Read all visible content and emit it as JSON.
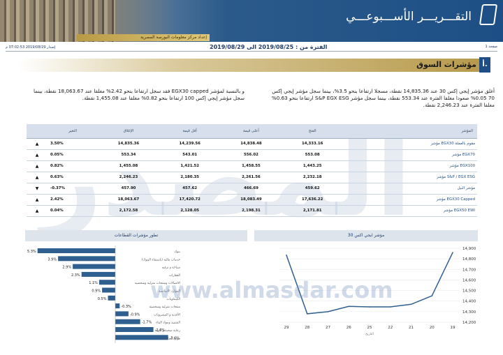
{
  "header": {
    "report_title": "التقـــريـــر الأســـبوعـــي",
    "provider": "إعداد مركز معلومات البورصة المصرية",
    "page": "صفحة 1",
    "period": "الفترة من : 2019/08/25 الى 2019/08/29",
    "issued": "إصدار 2019/08/29 07:02:53 م"
  },
  "section": {
    "number": "أ.",
    "title": "مؤشرات السوق"
  },
  "paragraphs": {
    "right": "أغلق مؤشر إيجي إكس 30 عند 14,835.36 نقطة، مسجلا ارتفاعا بنحو 3.5%، بينما سجل مؤشر إيجي إكس 70 0.05% صعودا مغلقا الفترة عند 553.34 نقطة، بينما سجل مؤشر S&P EGX ESG ارتفاعا بنحو 0.63% مغلقا الفترة عند 2,246.23 نقطة.",
    "left": "و بالنسبة لمؤشر EGX30 capped فقد سجل ارتفاعا بنحو 2.42% مغلقا عند 18,063.67 نقطة، بينما سجل مؤشر إيجي إكس 100 ارتفاعا بنحو 0.82% مغلقا عند 1,455.08 نقطة."
  },
  "table": {
    "headers": [
      "المؤشر",
      "الفتح",
      "أعلى قيمة",
      "أقل قيمة",
      "الإغلاق",
      "التغير"
    ],
    "rows": [
      {
        "name": "مؤشر EGX30 مقوم بالعملة",
        "open": "14,333.16",
        "high": "14,838.48",
        "low": "14,239.56",
        "close": "14,835.36",
        "change": "3.50%",
        "dir": "up"
      },
      {
        "name": "مؤشر EGX70",
        "open": "553.08",
        "high": "556.02",
        "low": "543.01",
        "close": "553.34",
        "change": "0.05%",
        "dir": "up"
      },
      {
        "name": "مؤشر EGX100",
        "open": "1,443.25",
        "high": "1,458.55",
        "low": "1,421.52",
        "close": "1,455.08",
        "change": "0.82%",
        "dir": "up"
      },
      {
        "name": "مؤشر S&P / EGX ESG",
        "open": "2,232.18",
        "high": "2,261.56",
        "low": "2,180.35",
        "close": "2,246.23",
        "change": "0.63%",
        "dir": "up"
      },
      {
        "name": "مؤشر النيل",
        "open": "459.62",
        "high": "466.69",
        "low": "457.62",
        "close": "457.90",
        "change": "-0.37%",
        "dir": "down"
      },
      {
        "name": "مؤشر EGX30 Capped",
        "open": "17,636.22",
        "high": "18,083.49",
        "low": "17,420.72",
        "close": "18,063.67",
        "change": "2.42%",
        "dir": "up"
      },
      {
        "name": "مؤشر EGX50 EWI",
        "open": "2,171.81",
        "high": "2,198.31",
        "low": "2,128.05",
        "close": "2,172.58",
        "change": "0.04%",
        "dir": "up"
      }
    ],
    "arrows": {
      "up": "▲",
      "down": "▼"
    }
  },
  "watermark": {
    "text": "المصدر",
    "url": "www.almasdar.com"
  },
  "chart_data": [
    {
      "type": "bar",
      "title": "تطور مؤشرات القطاعات",
      "orientation": "horizontal",
      "categories": [
        "بنوك",
        "خدمات مالية (باستثناء البنوك)",
        "سياحة و ترفيه",
        "العقارات",
        "الاتصالات ومنتجات منزلية وشخصية",
        "الموارد الأساسية",
        "الكيماويات",
        "منتجات منزلية وشخصية",
        "الأغذية و المشروبات",
        "التشييد ومواد البناء",
        "رعاية صحية و أدوية",
        "موارد أساسية"
      ],
      "values": [
        5.3,
        3.9,
        2.9,
        2.3,
        1.1,
        0.9,
        0.5,
        -0.3,
        -0.9,
        -1.7,
        -2.6,
        -3.6
      ],
      "value_labels": [
        "5.3%",
        "3.9%",
        "2.9%",
        "2.3%",
        "1.1%",
        "0.9%",
        "0.5%",
        "-0.3%",
        "-0.9%",
        "-1.7%",
        "-2.6%",
        "-3.6%"
      ],
      "color": "#2f5f8f"
    },
    {
      "type": "line",
      "title": "مؤشر ايجي اكس 30",
      "x": [
        "29",
        "28",
        "27",
        "26",
        "25",
        "22",
        "21",
        "20",
        "19"
      ],
      "y": [
        14835,
        14280,
        14300,
        14350,
        14345,
        14345,
        14370,
        14450,
        14860
      ],
      "ylim": [
        14200,
        14900
      ],
      "yticks": [
        "14,200",
        "14,300",
        "14,400",
        "14,500",
        "14,600",
        "14,700",
        "14,800",
        "14,900"
      ],
      "xlabel": "التاريخ",
      "color": "#2f5f8f"
    }
  ]
}
